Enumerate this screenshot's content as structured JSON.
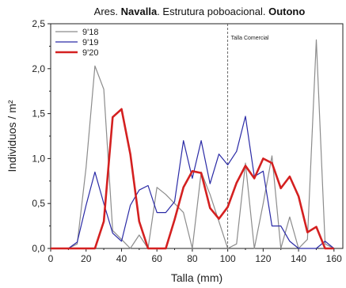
{
  "chart_data": {
    "type": "line",
    "title": {
      "prefix": "Ares. ",
      "bold1": "Navalla",
      "middle": ". Estrutura poboacional. ",
      "bold2": "Outono"
    },
    "xlabel": "Talla (mm)",
    "ylabel": "Individuos / m²",
    "xlim": [
      0,
      165
    ],
    "ylim": [
      0,
      2.5
    ],
    "xticks": [
      0,
      20,
      40,
      60,
      80,
      100,
      120,
      140,
      160
    ],
    "yticks": [
      {
        "value": 0,
        "label": "0,0"
      },
      {
        "value": 0.5,
        "label": "0,5"
      },
      {
        "value": 1.0,
        "label": "1,0"
      },
      {
        "value": 1.5,
        "label": "1,5"
      },
      {
        "value": 2.0,
        "label": "2,0"
      },
      {
        "value": 2.5,
        "label": "2,5"
      }
    ],
    "grid": false,
    "legend_position": "top-left",
    "annotations": [
      {
        "type": "vline",
        "x": 100,
        "label": "Talla Comercial"
      }
    ],
    "series": [
      {
        "name": "9'18",
        "color": "#8c8c8c",
        "width": 1.2,
        "points": [
          [
            0,
            0
          ],
          [
            5,
            0
          ],
          [
            10,
            0
          ],
          [
            15,
            0.05
          ],
          [
            20,
            0.9
          ],
          [
            25,
            2.03
          ],
          [
            30,
            1.77
          ],
          [
            35,
            0.2
          ],
          [
            40,
            0.1
          ],
          [
            45,
            0
          ],
          [
            50,
            0.15
          ],
          [
            55,
            0
          ],
          [
            60,
            0.68
          ],
          [
            65,
            0.6
          ],
          [
            70,
            0.5
          ],
          [
            75,
            0.4
          ],
          [
            80,
            0
          ],
          [
            85,
            0.85
          ],
          [
            90,
            0.6
          ],
          [
            95,
            0.3
          ],
          [
            100,
            0
          ],
          [
            105,
            0.05
          ],
          [
            110,
            0.95
          ],
          [
            115,
            0
          ],
          [
            120,
            0.5
          ],
          [
            125,
            1.03
          ],
          [
            130,
            0
          ],
          [
            135,
            0.35
          ],
          [
            140,
            0
          ],
          [
            145,
            0.1
          ],
          [
            150,
            2.32
          ],
          [
            155,
            0.05
          ],
          [
            160,
            0
          ]
        ]
      },
      {
        "name": "9'19",
        "color": "#2a2aa6",
        "width": 1.2,
        "points": [
          [
            0,
            0
          ],
          [
            5,
            0
          ],
          [
            10,
            0
          ],
          [
            15,
            0.07
          ],
          [
            20,
            0.48
          ],
          [
            25,
            0.85
          ],
          [
            30,
            0.5
          ],
          [
            35,
            0.17
          ],
          [
            40,
            0.08
          ],
          [
            45,
            0.48
          ],
          [
            50,
            0.65
          ],
          [
            55,
            0.7
          ],
          [
            60,
            0.4
          ],
          [
            65,
            0.4
          ],
          [
            70,
            0.52
          ],
          [
            75,
            1.2
          ],
          [
            80,
            0.78
          ],
          [
            85,
            1.2
          ],
          [
            90,
            0.72
          ],
          [
            95,
            1.05
          ],
          [
            100,
            0.93
          ],
          [
            105,
            1.08
          ],
          [
            110,
            1.47
          ],
          [
            115,
            0.8
          ],
          [
            120,
            0.86
          ],
          [
            125,
            0.25
          ],
          [
            130,
            0.25
          ],
          [
            135,
            0.08
          ],
          [
            140,
            0
          ],
          [
            145,
            0
          ],
          [
            150,
            0
          ],
          [
            155,
            0.08
          ],
          [
            160,
            0
          ]
        ]
      },
      {
        "name": "9'20",
        "color": "#d42020",
        "width": 2.6,
        "points": [
          [
            0,
            0
          ],
          [
            5,
            0
          ],
          [
            10,
            0
          ],
          [
            15,
            0
          ],
          [
            20,
            0
          ],
          [
            25,
            0
          ],
          [
            30,
            0.3
          ],
          [
            35,
            1.46
          ],
          [
            40,
            1.55
          ],
          [
            45,
            1.05
          ],
          [
            50,
            0.3
          ],
          [
            55,
            0
          ],
          [
            60,
            0
          ],
          [
            65,
            0
          ],
          [
            70,
            0.32
          ],
          [
            75,
            0.68
          ],
          [
            80,
            0.86
          ],
          [
            85,
            0.84
          ],
          [
            90,
            0.45
          ],
          [
            95,
            0.33
          ],
          [
            100,
            0.46
          ],
          [
            105,
            0.73
          ],
          [
            110,
            0.92
          ],
          [
            115,
            0.78
          ],
          [
            120,
            1.0
          ],
          [
            125,
            0.95
          ],
          [
            130,
            0.67
          ],
          [
            135,
            0.8
          ],
          [
            140,
            0.58
          ],
          [
            145,
            0.18
          ],
          [
            150,
            0.24
          ],
          [
            155,
            0
          ],
          [
            160,
            0
          ]
        ]
      }
    ]
  }
}
